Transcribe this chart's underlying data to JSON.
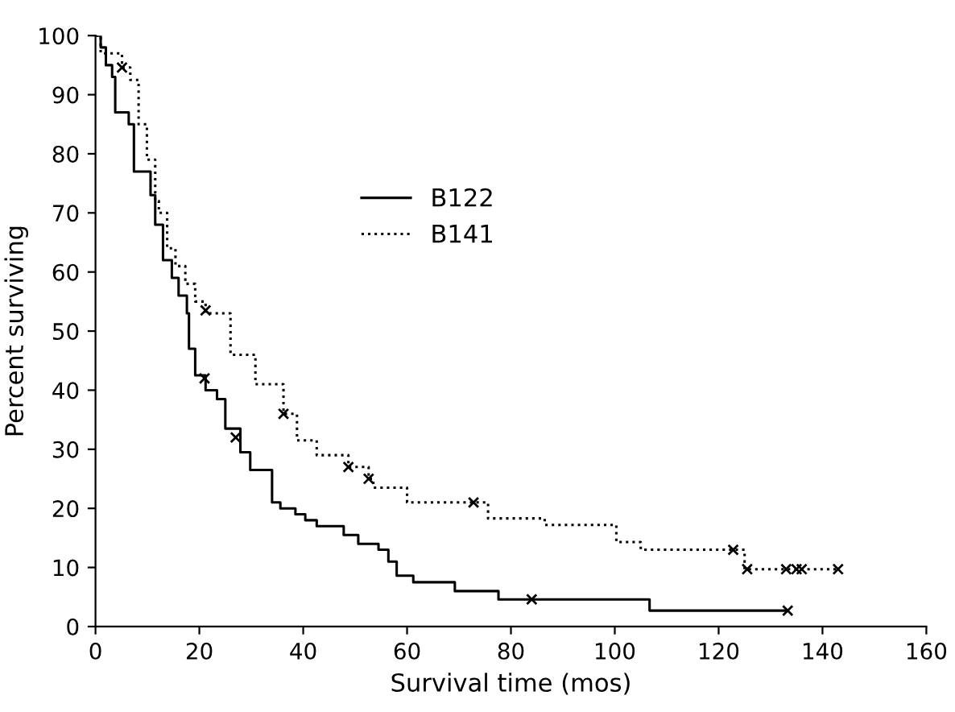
{
  "chart_data": {
    "type": "step",
    "xlabel": "Survival time (mos)",
    "ylabel": "Percent surviving",
    "xlim": [
      0,
      160
    ],
    "ylim": [
      0,
      100
    ],
    "xticks": [
      0,
      20,
      40,
      60,
      80,
      100,
      120,
      140,
      160
    ],
    "yticks": [
      0,
      10,
      20,
      30,
      40,
      50,
      60,
      70,
      80,
      90,
      100
    ],
    "grid": false,
    "legend": "top",
    "marker": "none",
    "series": [
      {
        "name": "B122",
        "color": "#000000",
        "line_style": "solid",
        "x": [
          0,
          1,
          2,
          3.2,
          3.8,
          6.4,
          7.4,
          10.6,
          11.5,
          13,
          14.7,
          16,
          17.6,
          18,
          19.2,
          21.2,
          23.4,
          25,
          27.9,
          29.8,
          34,
          35.6,
          38.5,
          40.4,
          42.6,
          47.8,
          50.6,
          54.5,
          56.4,
          58,
          61.2,
          69.2,
          77.6,
          106.7,
          133.3
        ],
        "values": [
          100,
          98,
          95,
          93,
          87,
          85,
          77,
          73,
          68,
          62,
          59,
          56,
          53,
          47,
          42.5,
          40,
          38.5,
          33.5,
          29.5,
          26.5,
          21,
          20,
          19,
          18,
          17,
          15.5,
          14,
          13,
          11,
          8.6,
          7.5,
          6,
          4.6,
          2.7,
          2.7
        ]
      },
      {
        "name": "B141",
        "color": "#000000",
        "line_style": "dotted",
        "x": [
          0,
          1,
          5.1,
          6.7,
          8.3,
          9.9,
          11.5,
          12.2,
          13.8,
          15.4,
          17.3,
          19.2,
          21.2,
          26,
          30.8,
          36.2,
          38.8,
          42.6,
          48.7,
          52.6,
          53.5,
          60,
          75.6,
          86.5,
          100.3,
          105,
          125,
          143
        ],
        "values": [
          100,
          97,
          94.6,
          92.5,
          85,
          79,
          72,
          70,
          64,
          61,
          58,
          55,
          53,
          46,
          41,
          36,
          31.5,
          29,
          27,
          25,
          23.5,
          21,
          18.3,
          17.2,
          14.3,
          13,
          9.7,
          9.7
        ]
      },
      {
        "type": "scatter",
        "color": "#000000",
        "marker": "cross",
        "x": [
          21,
          27,
          84,
          133.3
        ],
        "values": [
          42,
          32,
          4.6,
          2.7
        ]
      },
      {
        "type": "scatter",
        "color": "#000000",
        "marker": "cross",
        "x": [
          5.1,
          21.2,
          36.2,
          48.7,
          52.6,
          72.8,
          122.8,
          125.5,
          133,
          135,
          136,
          143
        ],
        "values": [
          94.6,
          53.5,
          36,
          27,
          25,
          21,
          13,
          9.7,
          9.7,
          9.7,
          9.7,
          9.7
        ]
      }
    ]
  }
}
